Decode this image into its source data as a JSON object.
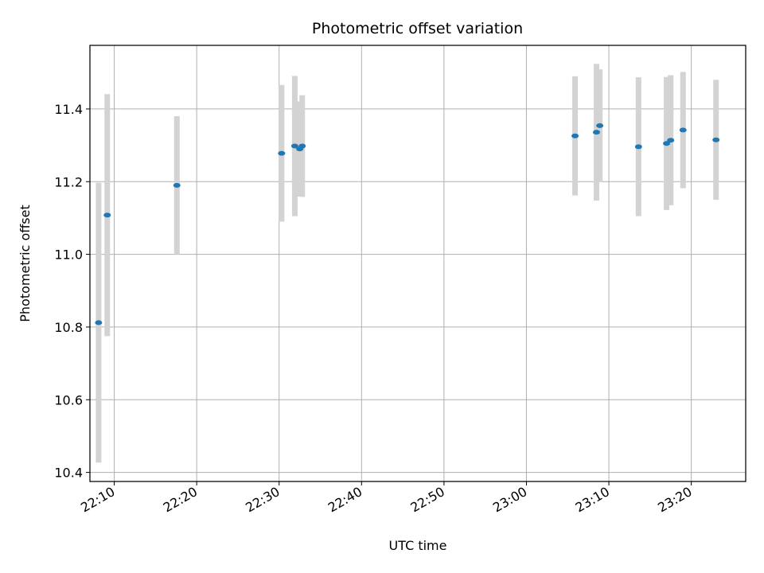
{
  "chart_data": {
    "type": "scatter",
    "title": "Photometric offset variation",
    "xlabel": "UTC time",
    "ylabel": "Photometric offset",
    "x_axis_type": "time",
    "xlim": [
      "22:07:03",
      "23:26:36"
    ],
    "ylim": [
      10.375,
      11.575
    ],
    "x_ticks": [
      "22:10",
      "22:20",
      "22:30",
      "22:40",
      "22:50",
      "23:00",
      "23:10",
      "23:20"
    ],
    "y_ticks": [
      10.4,
      10.6,
      10.8,
      11.0,
      11.2,
      11.4
    ],
    "y_tick_labels": [
      "10.4",
      "10.6",
      "10.8",
      "11.0",
      "11.2",
      "11.4"
    ],
    "grid": true,
    "marker_color": "#1f77b4",
    "errorbar_color": "#d3d3d3",
    "points": [
      {
        "t": "22:08:06",
        "y": 10.812,
        "err": 0.385
      },
      {
        "t": "22:09:09",
        "y": 11.108,
        "err": 0.333
      },
      {
        "t": "22:17:36",
        "y": 11.19,
        "err": 0.19
      },
      {
        "t": "22:30:18",
        "y": 11.278,
        "err": 0.188
      },
      {
        "t": "22:31:54",
        "y": 11.298,
        "err": 0.193
      },
      {
        "t": "22:32:30",
        "y": 11.29,
        "err": 0.131
      },
      {
        "t": "22:32:48",
        "y": 11.298,
        "err": 0.14
      },
      {
        "t": "23:05:54",
        "y": 11.326,
        "err": 0.164
      },
      {
        "t": "23:08:30",
        "y": 11.336,
        "err": 0.188
      },
      {
        "t": "23:08:54",
        "y": 11.354,
        "err": 0.155
      },
      {
        "t": "23:13:36",
        "y": 11.296,
        "err": 0.191
      },
      {
        "t": "23:17:00",
        "y": 11.305,
        "err": 0.183
      },
      {
        "t": "23:17:30",
        "y": 11.314,
        "err": 0.179
      },
      {
        "t": "23:19:00",
        "y": 11.342,
        "err": 0.16
      },
      {
        "t": "23:23:00",
        "y": 11.315,
        "err": 0.165
      }
    ]
  }
}
